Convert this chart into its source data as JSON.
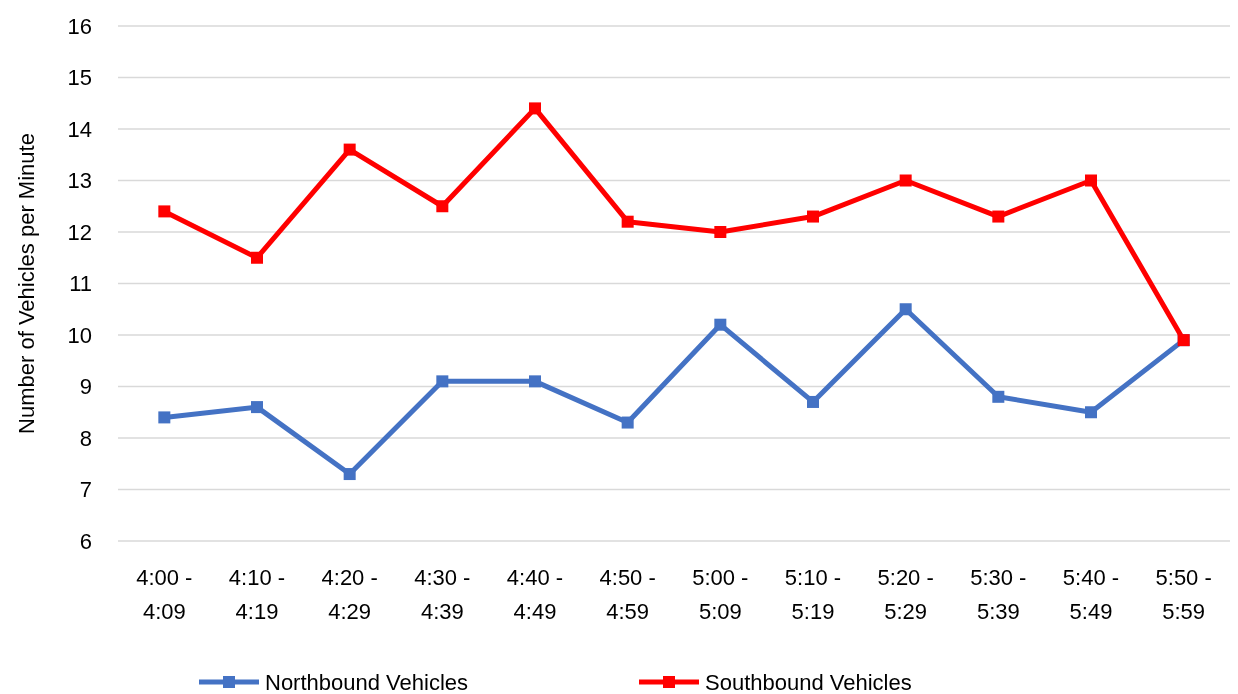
{
  "chart_data": {
    "type": "line",
    "ylabel": "Number of Vehicles per Minute",
    "categories": [
      "4:00 - 4:09",
      "4:10 - 4:19",
      "4:20 - 4:29",
      "4:30 - 4:39",
      "4:40 - 4:49",
      "4:50 - 4:59",
      "5:00 - 5:09",
      "5:10 - 5:19",
      "5:20 - 5:29",
      "5:30 - 5:39",
      "5:40 - 5:49",
      "5:50 - 5:59"
    ],
    "series": [
      {
        "name": "Northbound Vehicles",
        "color": "#4472c4",
        "values": [
          8.4,
          8.6,
          7.3,
          9.1,
          9.1,
          8.3,
          10.2,
          8.7,
          10.5,
          8.8,
          8.5,
          9.9
        ]
      },
      {
        "name": "Southbound Vehicles",
        "color": "#ff0000",
        "values": [
          12.4,
          11.5,
          13.6,
          12.5,
          14.4,
          12.2,
          12.0,
          12.3,
          13.0,
          12.3,
          13.0,
          9.9
        ]
      }
    ],
    "ylim": [
      6,
      16
    ],
    "yticks": [
      6,
      7,
      8,
      9,
      10,
      11,
      12,
      13,
      14,
      15,
      16
    ],
    "grid": "y",
    "legend": "bottom",
    "marker": "square",
    "line_style": "solid"
  }
}
